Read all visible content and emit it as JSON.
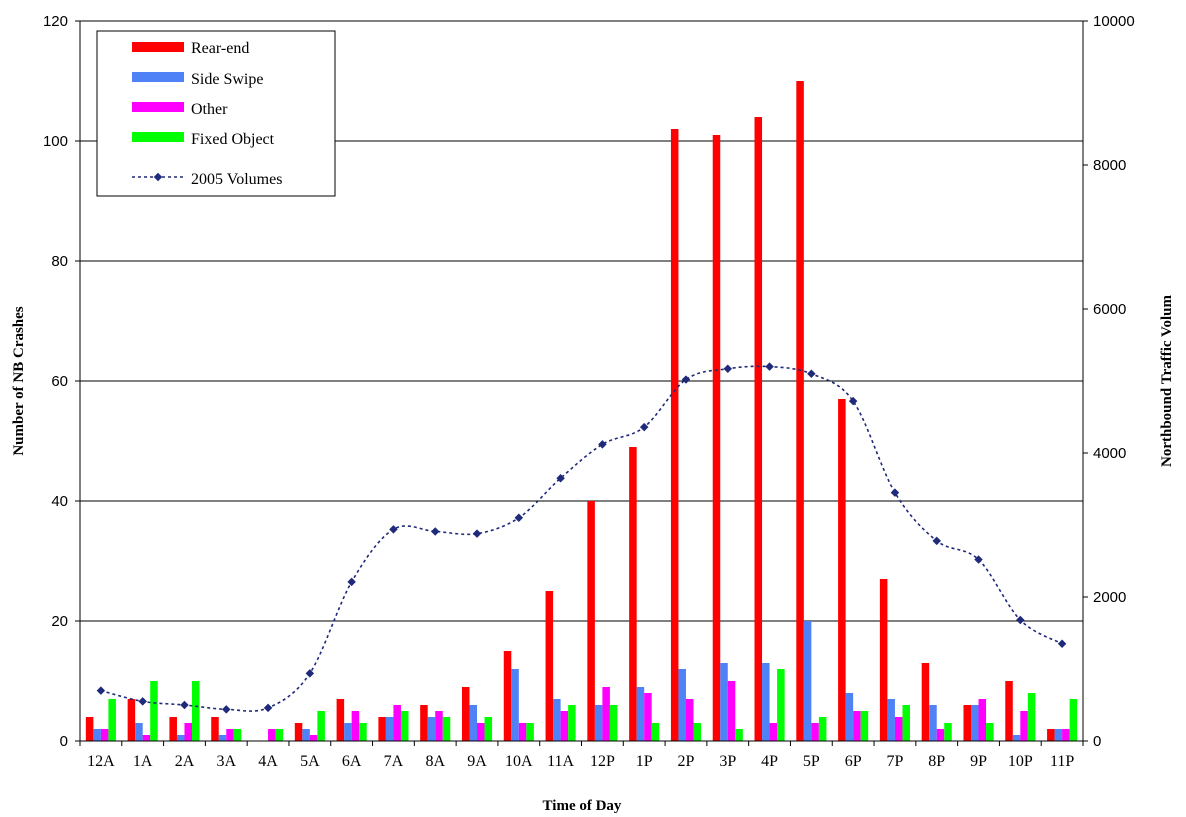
{
  "chart_data": {
    "type": "bar",
    "categories": [
      "12A",
      "1A",
      "2A",
      "3A",
      "4A",
      "5A",
      "6A",
      "7A",
      "8A",
      "9A",
      "10A",
      "11A",
      "12P",
      "1P",
      "2P",
      "3P",
      "4P",
      "5P",
      "6P",
      "7P",
      "8P",
      "9P",
      "10P",
      "11P"
    ],
    "xlabel": "Time of Day",
    "ylabel": "Number of NB Crashes",
    "y2label": "Northbound Traffic Volum",
    "ylim": [
      0,
      120
    ],
    "y2lim": [
      0,
      10000
    ],
    "yticks": [
      "0",
      "20",
      "40",
      "60",
      "80",
      "100",
      "120"
    ],
    "y2ticks": [
      "0",
      "2000",
      "4000",
      "6000",
      "8000",
      "10000"
    ],
    "grid": true,
    "legend_position": "top-left",
    "series": [
      {
        "name": "Rear-end",
        "type": "bar",
        "axis": "left",
        "color": "#ff0000",
        "values": [
          4,
          7,
          4,
          4,
          0,
          3,
          7,
          4,
          6,
          9,
          15,
          25,
          40,
          49,
          102,
          101,
          104,
          110,
          57,
          27,
          13,
          6,
          10,
          2
        ]
      },
      {
        "name": "Side Swipe",
        "type": "bar",
        "axis": "left",
        "color": "#4f81f7",
        "values": [
          2,
          3,
          1,
          1,
          0,
          2,
          3,
          4,
          4,
          6,
          12,
          7,
          6,
          9,
          12,
          13,
          13,
          20,
          8,
          7,
          6,
          6,
          1,
          2
        ]
      },
      {
        "name": "Other",
        "type": "bar",
        "axis": "left",
        "color": "#ff00ff",
        "values": [
          2,
          1,
          3,
          2,
          2,
          1,
          5,
          6,
          5,
          3,
          3,
          5,
          9,
          8,
          7,
          10,
          3,
          3,
          5,
          4,
          2,
          7,
          5,
          2
        ]
      },
      {
        "name": "Fixed Object",
        "type": "bar",
        "axis": "left",
        "color": "#00ff00",
        "values": [
          7,
          10,
          10,
          2,
          2,
          5,
          3,
          5,
          4,
          4,
          3,
          6,
          6,
          3,
          3,
          2,
          12,
          4,
          5,
          6,
          3,
          3,
          8,
          7
        ]
      },
      {
        "name": "2005 Volumes",
        "type": "line",
        "axis": "right",
        "color": "#1f2a7a",
        "values": [
          700,
          550,
          500,
          440,
          460,
          940,
          2210,
          2940,
          2910,
          2880,
          3100,
          3650,
          4120,
          4360,
          5020,
          5170,
          5200,
          5100,
          4720,
          3450,
          2780,
          2520,
          1680,
          1350
        ]
      }
    ]
  }
}
